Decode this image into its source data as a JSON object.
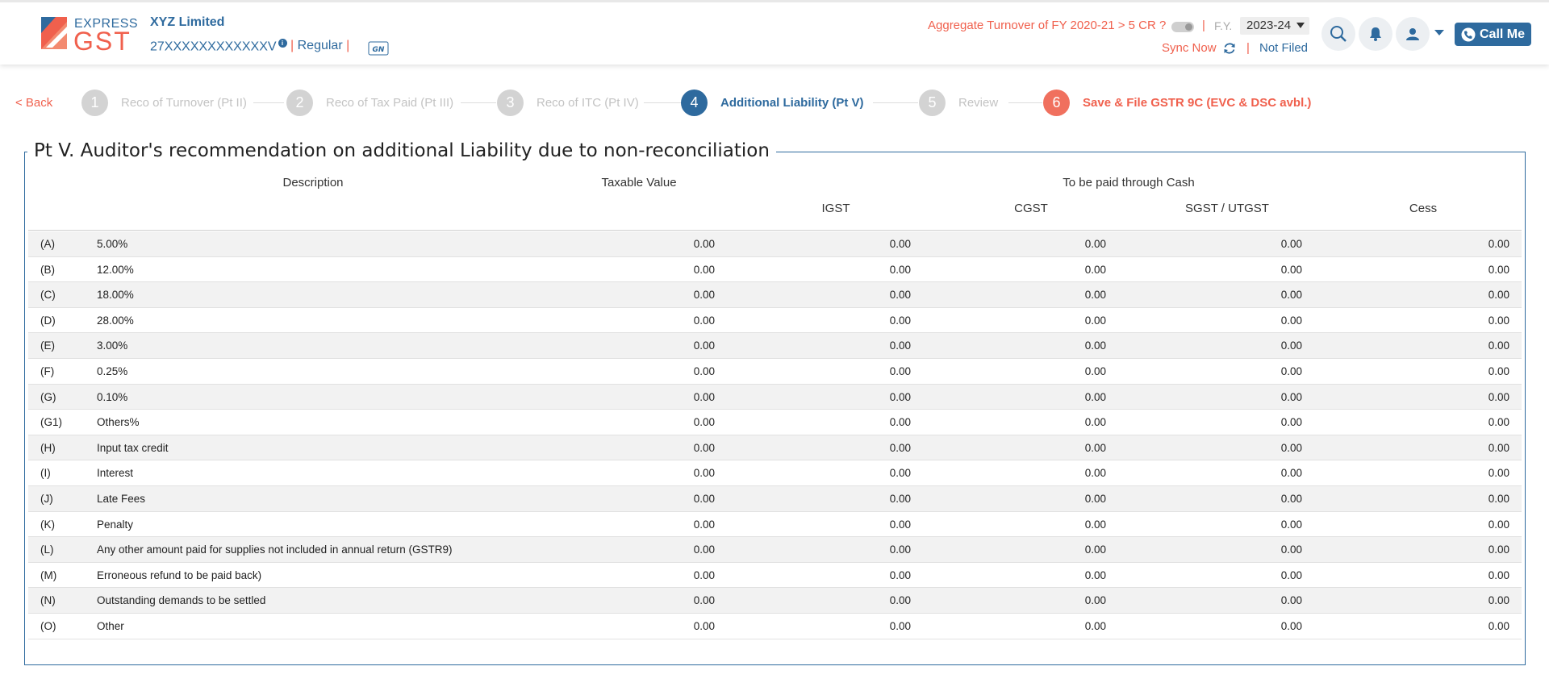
{
  "header": {
    "logo": {
      "express": "EXPRESS",
      "gst": "GST"
    },
    "company_name": "XYZ Limited",
    "gstin": "27XXXXXXXXXXXXV",
    "info_badge": "i",
    "registration_type": "Regular",
    "separator": "|",
    "aggregate_turnover_label": "Aggregate Turnover of FY 2020-21 > 5 CR ?",
    "fy_label": "F.Y.",
    "fy_value": "2023-24",
    "sync_label": "Sync Now",
    "filing_status": "Not Filed",
    "call_me_label": "Call Me"
  },
  "stepper": {
    "back_label": "< Back",
    "steps": [
      {
        "number": "1",
        "label": "Reco of Turnover (Pt II)",
        "state": "inactive"
      },
      {
        "number": "2",
        "label": "Reco of Tax Paid (Pt III)",
        "state": "inactive"
      },
      {
        "number": "3",
        "label": "Reco of ITC (Pt IV)",
        "state": "inactive"
      },
      {
        "number": "4",
        "label": "Additional Liability (Pt V)",
        "state": "active"
      },
      {
        "number": "5",
        "label": "Review",
        "state": "inactive"
      },
      {
        "number": "6",
        "label": "Save & File GSTR 9C (EVC & DSC avbl.)",
        "state": "final"
      }
    ]
  },
  "section": {
    "title": "Pt V. Auditor's recommendation on additional Liability due to non-reconciliation",
    "headers": {
      "description": "Description",
      "taxable_value": "Taxable Value",
      "cash_group": "To be paid through Cash",
      "igst": "IGST",
      "cgst": "CGST",
      "sgst": "SGST / UTGST",
      "cess": "Cess"
    },
    "rows": [
      {
        "code": "(A)",
        "desc": "5.00%",
        "tv": "0.00",
        "igst": "0.00",
        "cgst": "0.00",
        "sgst": "0.00",
        "cess": "0.00"
      },
      {
        "code": "(B)",
        "desc": "12.00%",
        "tv": "0.00",
        "igst": "0.00",
        "cgst": "0.00",
        "sgst": "0.00",
        "cess": "0.00"
      },
      {
        "code": "(C)",
        "desc": "18.00%",
        "tv": "0.00",
        "igst": "0.00",
        "cgst": "0.00",
        "sgst": "0.00",
        "cess": "0.00"
      },
      {
        "code": "(D)",
        "desc": "28.00%",
        "tv": "0.00",
        "igst": "0.00",
        "cgst": "0.00",
        "sgst": "0.00",
        "cess": "0.00"
      },
      {
        "code": "(E)",
        "desc": "3.00%",
        "tv": "0.00",
        "igst": "0.00",
        "cgst": "0.00",
        "sgst": "0.00",
        "cess": "0.00"
      },
      {
        "code": "(F)",
        "desc": "0.25%",
        "tv": "0.00",
        "igst": "0.00",
        "cgst": "0.00",
        "sgst": "0.00",
        "cess": "0.00"
      },
      {
        "code": "(G)",
        "desc": "0.10%",
        "tv": "0.00",
        "igst": "0.00",
        "cgst": "0.00",
        "sgst": "0.00",
        "cess": "0.00"
      },
      {
        "code": "(G1)",
        "desc": "Others%",
        "tv": "0.00",
        "igst": "0.00",
        "cgst": "0.00",
        "sgst": "0.00",
        "cess": "0.00"
      },
      {
        "code": "(H)",
        "desc": "Input tax credit",
        "tv": "0.00",
        "igst": "0.00",
        "cgst": "0.00",
        "sgst": "0.00",
        "cess": "0.00"
      },
      {
        "code": "(I)",
        "desc": "Interest",
        "tv": "0.00",
        "igst": "0.00",
        "cgst": "0.00",
        "sgst": "0.00",
        "cess": "0.00"
      },
      {
        "code": "(J)",
        "desc": "Late Fees",
        "tv": "0.00",
        "igst": "0.00",
        "cgst": "0.00",
        "sgst": "0.00",
        "cess": "0.00"
      },
      {
        "code": "(K)",
        "desc": "Penalty",
        "tv": "0.00",
        "igst": "0.00",
        "cgst": "0.00",
        "sgst": "0.00",
        "cess": "0.00"
      },
      {
        "code": "(L)",
        "desc": "Any other amount paid for supplies not included in annual return (GSTR9)",
        "tv": "0.00",
        "igst": "0.00",
        "cgst": "0.00",
        "sgst": "0.00",
        "cess": "0.00"
      },
      {
        "code": "(M)",
        "desc": "Erroneous refund to be paid back)",
        "tv": "0.00",
        "igst": "0.00",
        "cgst": "0.00",
        "sgst": "0.00",
        "cess": "0.00"
      },
      {
        "code": "(N)",
        "desc": "Outstanding demands to be settled",
        "tv": "0.00",
        "igst": "0.00",
        "cgst": "0.00",
        "sgst": "0.00",
        "cess": "0.00"
      },
      {
        "code": "(O)",
        "desc": "Other",
        "tv": "0.00",
        "igst": "0.00",
        "cgst": "0.00",
        "sgst": "0.00",
        "cess": "0.00"
      }
    ]
  },
  "icons": {
    "logo_mark": "express-gst-logo-icon",
    "gsn": "gsn-icon",
    "sync": "refresh-icon",
    "search": "search-icon",
    "bell": "bell-icon",
    "user": "user-icon",
    "phone": "phone-icon"
  },
  "colors": {
    "primary": "#2e6a9e",
    "accent": "#f0604d",
    "row_alt": "#f2f2f2",
    "step_inactive": "#d3d3d3"
  }
}
